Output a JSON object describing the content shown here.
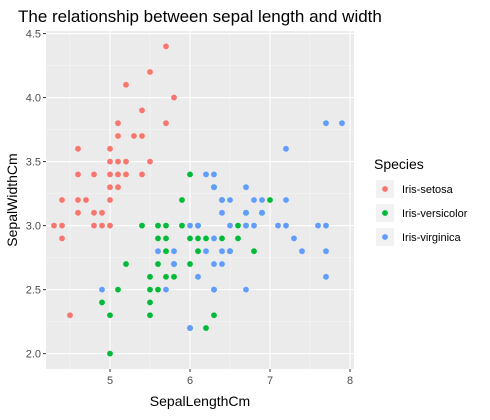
{
  "chart_data": {
    "type": "scatter",
    "title": "The relationship between sepal length and width",
    "xlabel": "SepalLengthCm",
    "ylabel": "SepalWidthCm",
    "xlim": [
      4.2,
      8.05
    ],
    "ylim": [
      1.88,
      4.52
    ],
    "x_ticks": [
      5,
      6,
      7,
      8
    ],
    "y_ticks": [
      2.0,
      2.5,
      3.0,
      3.5,
      4.0,
      4.5
    ],
    "x_tick_labels": [
      "5",
      "6",
      "7",
      "8"
    ],
    "y_tick_labels": [
      "2.0",
      "2.5",
      "3.0",
      "3.5",
      "4.0",
      "4.5"
    ],
    "grid": true,
    "legend": {
      "title": "Species",
      "position": "right"
    },
    "series": [
      {
        "name": "Iris-setosa",
        "color": "#F8766D",
        "points": [
          [
            4.3,
            3.0
          ],
          [
            4.4,
            3.0
          ],
          [
            4.4,
            2.9
          ],
          [
            4.4,
            3.2
          ],
          [
            4.5,
            2.3
          ],
          [
            4.6,
            3.1
          ],
          [
            4.6,
            3.4
          ],
          [
            4.6,
            3.6
          ],
          [
            4.6,
            3.2
          ],
          [
            4.7,
            3.2
          ],
          [
            4.8,
            3.4
          ],
          [
            4.8,
            3.0
          ],
          [
            4.8,
            3.1
          ],
          [
            4.9,
            3.0
          ],
          [
            4.9,
            3.1
          ],
          [
            5.0,
            3.6
          ],
          [
            5.0,
            3.4
          ],
          [
            5.0,
            3.0
          ],
          [
            5.0,
            3.3
          ],
          [
            5.0,
            3.2
          ],
          [
            5.0,
            3.5
          ],
          [
            5.1,
            3.5
          ],
          [
            5.1,
            3.8
          ],
          [
            5.1,
            3.7
          ],
          [
            5.1,
            3.3
          ],
          [
            5.1,
            3.4
          ],
          [
            5.2,
            3.5
          ],
          [
            5.2,
            3.4
          ],
          [
            5.2,
            4.1
          ],
          [
            5.3,
            3.7
          ],
          [
            5.4,
            3.9
          ],
          [
            5.4,
            3.7
          ],
          [
            5.4,
            3.4
          ],
          [
            5.5,
            4.2
          ],
          [
            5.5,
            3.5
          ],
          [
            5.7,
            4.4
          ],
          [
            5.7,
            3.8
          ],
          [
            5.8,
            4.0
          ]
        ]
      },
      {
        "name": "Iris-versicolor",
        "color": "#00BA38",
        "points": [
          [
            4.9,
            2.4
          ],
          [
            5.0,
            2.0
          ],
          [
            5.0,
            2.3
          ],
          [
            5.1,
            2.5
          ],
          [
            5.2,
            2.7
          ],
          [
            5.4,
            3.0
          ],
          [
            5.5,
            2.3
          ],
          [
            5.5,
            2.4
          ],
          [
            5.5,
            2.5
          ],
          [
            5.5,
            2.6
          ],
          [
            5.6,
            2.9
          ],
          [
            5.6,
            3.0
          ],
          [
            5.6,
            2.5
          ],
          [
            5.6,
            2.7
          ],
          [
            5.7,
            2.8
          ],
          [
            5.7,
            2.6
          ],
          [
            5.7,
            2.9
          ],
          [
            5.7,
            3.0
          ],
          [
            5.8,
            2.7
          ],
          [
            5.8,
            2.6
          ],
          [
            5.9,
            3.0
          ],
          [
            5.9,
            3.2
          ],
          [
            6.0,
            2.2
          ],
          [
            6.0,
            2.9
          ],
          [
            6.0,
            2.7
          ],
          [
            6.0,
            3.4
          ],
          [
            6.1,
            2.9
          ],
          [
            6.1,
            2.8
          ],
          [
            6.1,
            3.0
          ],
          [
            6.2,
            2.2
          ],
          [
            6.2,
            2.9
          ],
          [
            6.3,
            3.3
          ],
          [
            6.3,
            2.5
          ],
          [
            6.3,
            2.3
          ],
          [
            6.4,
            3.2
          ],
          [
            6.4,
            2.9
          ],
          [
            6.5,
            2.8
          ],
          [
            6.6,
            2.9
          ],
          [
            6.6,
            3.0
          ],
          [
            6.7,
            3.1
          ],
          [
            6.7,
            3.0
          ],
          [
            6.8,
            2.8
          ],
          [
            6.9,
            3.1
          ],
          [
            7.0,
            3.2
          ]
        ]
      },
      {
        "name": "Iris-virginica",
        "color": "#619CFF",
        "points": [
          [
            4.9,
            2.5
          ],
          [
            5.6,
            2.8
          ],
          [
            5.7,
            2.5
          ],
          [
            5.8,
            2.7
          ],
          [
            5.8,
            2.8
          ],
          [
            6.0,
            2.2
          ],
          [
            6.0,
            3.0
          ],
          [
            6.1,
            3.0
          ],
          [
            6.1,
            2.6
          ],
          [
            6.2,
            2.8
          ],
          [
            6.2,
            3.4
          ],
          [
            6.3,
            3.3
          ],
          [
            6.3,
            2.9
          ],
          [
            6.3,
            2.7
          ],
          [
            6.3,
            2.5
          ],
          [
            6.3,
            3.4
          ],
          [
            6.4,
            2.7
          ],
          [
            6.4,
            3.2
          ],
          [
            6.4,
            2.8
          ],
          [
            6.4,
            3.1
          ],
          [
            6.5,
            3.0
          ],
          [
            6.5,
            3.2
          ],
          [
            6.5,
            2.8
          ],
          [
            6.7,
            2.5
          ],
          [
            6.7,
            3.3
          ],
          [
            6.7,
            3.1
          ],
          [
            6.7,
            3.0
          ],
          [
            6.8,
            3.0
          ],
          [
            6.8,
            3.2
          ],
          [
            6.9,
            3.2
          ],
          [
            6.9,
            3.1
          ],
          [
            7.1,
            3.0
          ],
          [
            7.2,
            3.6
          ],
          [
            7.2,
            3.2
          ],
          [
            7.2,
            3.0
          ],
          [
            7.3,
            2.9
          ],
          [
            7.4,
            2.8
          ],
          [
            7.6,
            3.0
          ],
          [
            7.7,
            3.8
          ],
          [
            7.7,
            2.6
          ],
          [
            7.7,
            2.8
          ],
          [
            7.7,
            3.0
          ],
          [
            7.9,
            3.8
          ]
        ]
      }
    ]
  }
}
